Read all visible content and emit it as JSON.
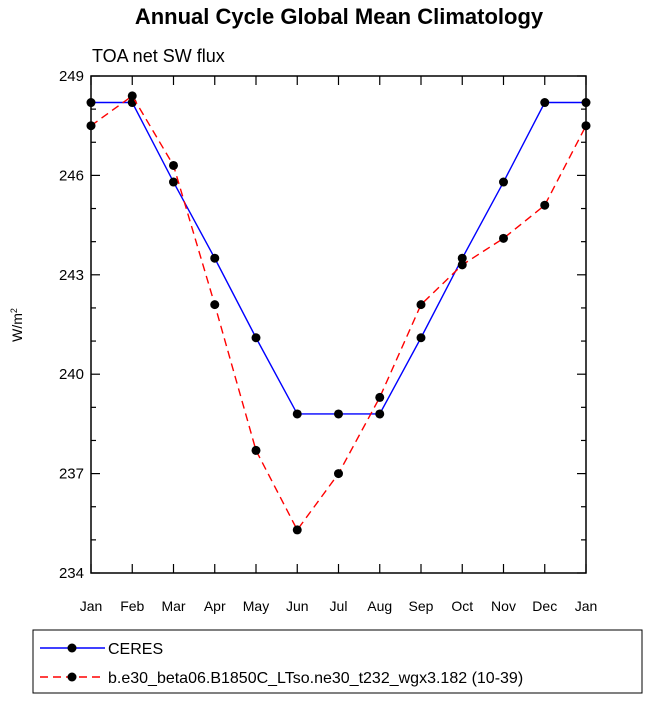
{
  "chart_data": {
    "type": "line",
    "title": "Annual Cycle Global Mean Climatology",
    "subtitle": "TOA net SW flux",
    "ylabel": "W/m",
    "ylabel_sup": "2",
    "xlabel": "",
    "categories": [
      "Jan",
      "Feb",
      "Mar",
      "Apr",
      "May",
      "Jun",
      "Jul",
      "Aug",
      "Sep",
      "Oct",
      "Nov",
      "Dec",
      "Jan"
    ],
    "ylim": [
      234,
      249
    ],
    "yticks": [
      234,
      237,
      240,
      243,
      246,
      249
    ],
    "grid": false,
    "legend_position": "bottom",
    "series": [
      {
        "name": "CERES",
        "color": "#0000ff",
        "dash": "solid",
        "values": [
          248.2,
          248.2,
          245.8,
          243.5,
          241.1,
          238.8,
          238.8,
          238.8,
          241.1,
          243.5,
          245.8,
          248.2,
          248.2
        ]
      },
      {
        "name": "b.e30_beta06.B1850C_LTso.ne30_t232_wgx3.182 (10-39)",
        "color": "#ff0000",
        "dash": "dashed",
        "values": [
          247.5,
          248.4,
          246.3,
          242.1,
          237.7,
          235.3,
          237.0,
          239.3,
          242.1,
          243.3,
          244.1,
          245.1,
          247.5
        ]
      }
    ]
  }
}
